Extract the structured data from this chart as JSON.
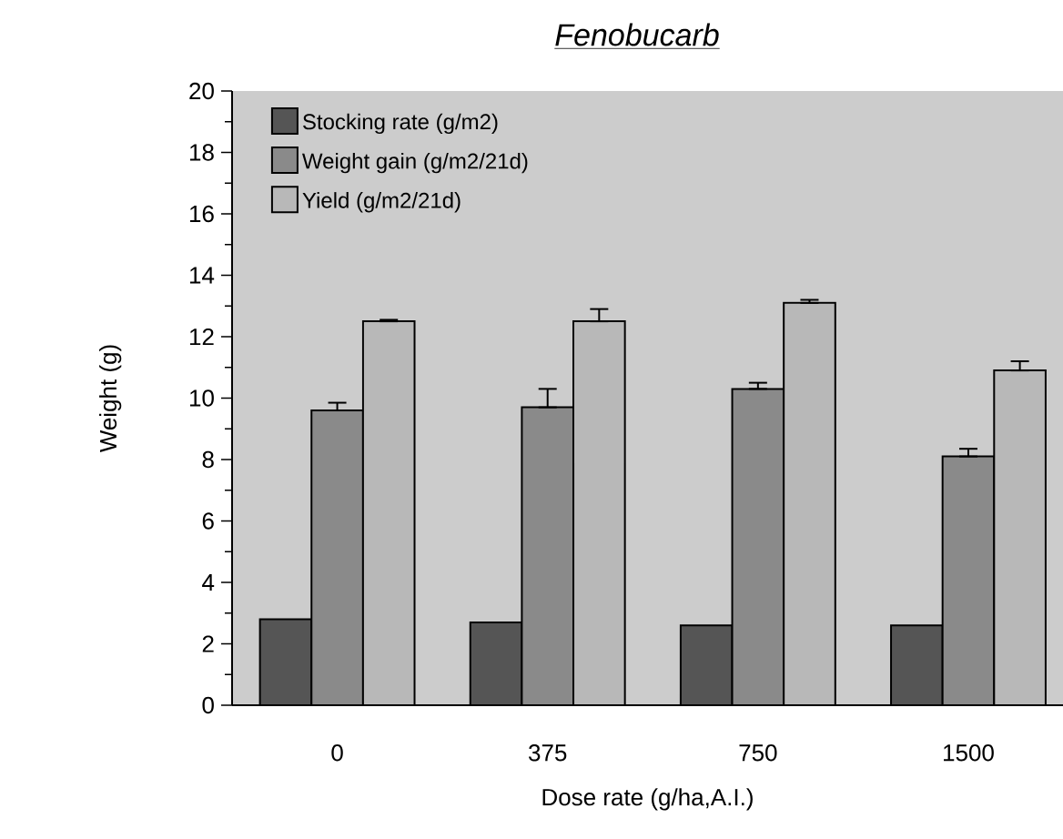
{
  "chart_data": {
    "type": "bar",
    "title": "Fenobucarb",
    "xlabel": "Dose  rate   (g/ha,A.I.)",
    "ylabel": "Weight  (g)",
    "categories": [
      "0",
      "375",
      "750",
      "1500"
    ],
    "series": [
      {
        "name": "Stocking rate (g/m2)",
        "color": "#555555",
        "values": [
          2.8,
          2.7,
          2.6,
          2.6
        ]
      },
      {
        "name": "Weight gain (g/m2/21d)",
        "color": "#8a8a8a",
        "values": [
          9.6,
          9.7,
          10.3,
          8.1
        ],
        "errors": [
          [
            9.6,
            9.85
          ],
          [
            9.7,
            10.3
          ],
          [
            10.3,
            10.5
          ],
          [
            8.1,
            8.35
          ]
        ]
      },
      {
        "name": "Yield (g/m2/21d)",
        "color": "#b8b8b8",
        "values": [
          12.5,
          12.5,
          13.1,
          10.9
        ],
        "errors": [
          [
            12.5,
            12.55
          ],
          [
            12.5,
            12.9
          ],
          [
            13.1,
            13.2
          ],
          [
            10.9,
            11.2
          ]
        ]
      }
    ],
    "ylim": [
      0,
      20
    ],
    "yticks": [
      0,
      2,
      4,
      6,
      8,
      10,
      12,
      14,
      16,
      18,
      20
    ],
    "grid": false,
    "legend": "top left"
  }
}
